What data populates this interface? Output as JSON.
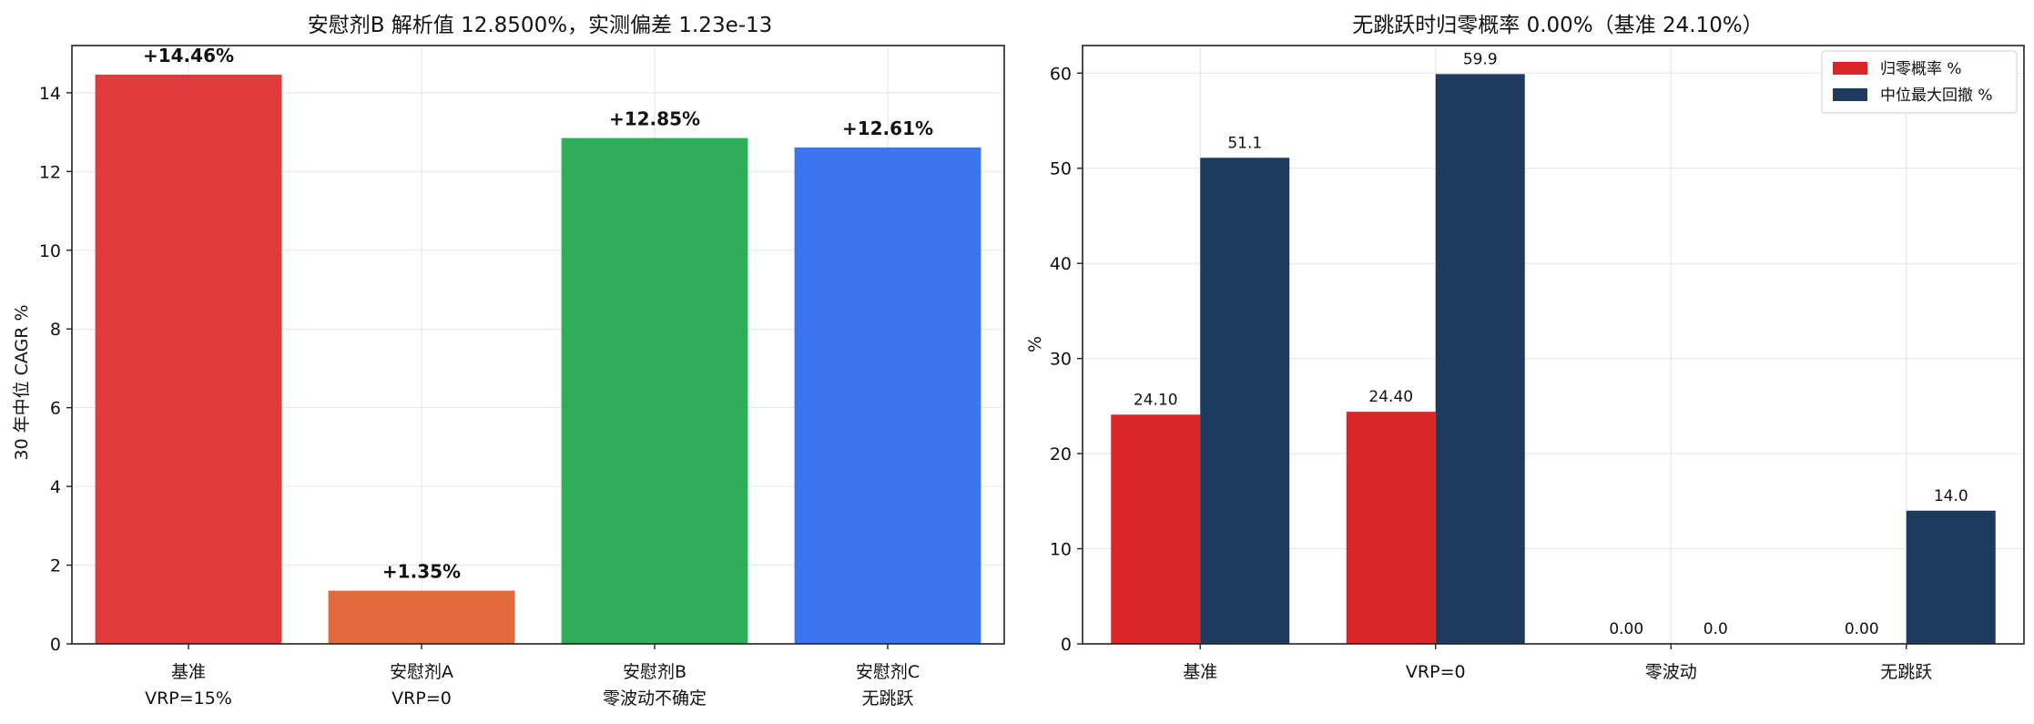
{
  "chart_data": [
    {
      "type": "bar",
      "title": "安慰剂B 解析值 12.8500%，实测偏差 1.23e-13",
      "xlabel": "",
      "ylabel": "30 年中位 CAGR %",
      "ylim": [
        0,
        15.2
      ],
      "yticks": [
        0,
        2,
        4,
        6,
        8,
        10,
        12,
        14
      ],
      "grid": true,
      "categories": [
        [
          "基准",
          "VRP=15%"
        ],
        [
          "安慰剂A",
          "VRP=0"
        ],
        [
          "安慰剂B",
          "零波动不确定"
        ],
        [
          "安慰剂C",
          "无跳跃"
        ]
      ],
      "values": [
        14.46,
        1.35,
        12.85,
        12.61
      ],
      "data_labels": [
        "+14.46%",
        "+1.35%",
        "+12.85%",
        "+12.61%"
      ],
      "colors": [
        "#E03A3A",
        "#E26A3C",
        "#2EAD5B",
        "#3B76EE"
      ]
    },
    {
      "type": "bar",
      "title": "无跳跃时归零概率 0.00%（基准 24.10%）",
      "xlabel": "",
      "ylabel": "%",
      "ylim": [
        0,
        62.9
      ],
      "yticks": [
        0,
        10,
        20,
        30,
        40,
        50,
        60
      ],
      "grid": true,
      "legend_position": "top-right",
      "categories": [
        "基准",
        "VRP=0",
        "零波动",
        "无跳跃"
      ],
      "series": [
        {
          "name": "归零概率 %",
          "color": "#D92626",
          "values": [
            24.1,
            24.4,
            0.0,
            0.0
          ],
          "data_labels": [
            "24.10",
            "24.40",
            "0.00",
            "0.00"
          ]
        },
        {
          "name": "中位最大回撤 %",
          "color": "#1F3A5F",
          "values": [
            51.1,
            59.9,
            0.0,
            14.0
          ],
          "data_labels": [
            "51.1",
            "59.9",
            "0.0",
            "14.0"
          ]
        }
      ]
    }
  ]
}
